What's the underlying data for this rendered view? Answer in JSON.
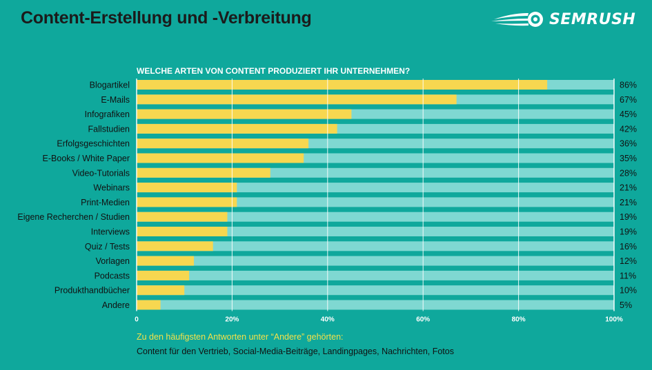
{
  "header": {
    "title": "Content-Erstellung und -Verbreitung",
    "logo_text": "SEMRUSH"
  },
  "colors": {
    "background": "#0fa89c",
    "bar_fill": "#f7d750",
    "bar_track": "#7fd8d2",
    "note_title": "#f2e14a"
  },
  "chart_data": {
    "type": "bar",
    "orientation": "horizontal",
    "title": "WELCHE ARTEN VON CONTENT PRODUZIERT IHR UNTERNEHMEN?",
    "categories": [
      "Blogartikel",
      "E-Mails",
      "Infografiken",
      "Fallstudien",
      "Erfolgsgeschichten",
      "E-Books / White Paper",
      "Video-Tutorials",
      "Webinars",
      "Print-Medien",
      "Eigene Recherchen / Studien",
      "Interviews",
      "Quiz / Tests",
      "Vorlagen",
      "Podcasts",
      "Produkthandbücher",
      "Andere"
    ],
    "values": [
      86,
      67,
      45,
      42,
      36,
      35,
      28,
      21,
      21,
      19,
      19,
      16,
      12,
      11,
      10,
      5
    ],
    "value_labels": [
      "86%",
      "67%",
      "45%",
      "42%",
      "36%",
      "35%",
      "28%",
      "21%",
      "21%",
      "19%",
      "19%",
      "16%",
      "12%",
      "11%",
      "10%",
      "5%"
    ],
    "xlim": [
      0,
      100
    ],
    "xticks": [
      0,
      20,
      40,
      60,
      80,
      100
    ],
    "xtick_labels": [
      "0",
      "20%",
      "40%",
      "60%",
      "80%",
      "100%"
    ],
    "grid": true,
    "xlabel": "",
    "ylabel": ""
  },
  "note": {
    "title": "Zu den häufigsten Antworten unter “Andere” gehörten:",
    "text": "Content für den Vertrieb, Social-Media-Beiträge, Landingpages, Nachrichten, Fotos"
  }
}
